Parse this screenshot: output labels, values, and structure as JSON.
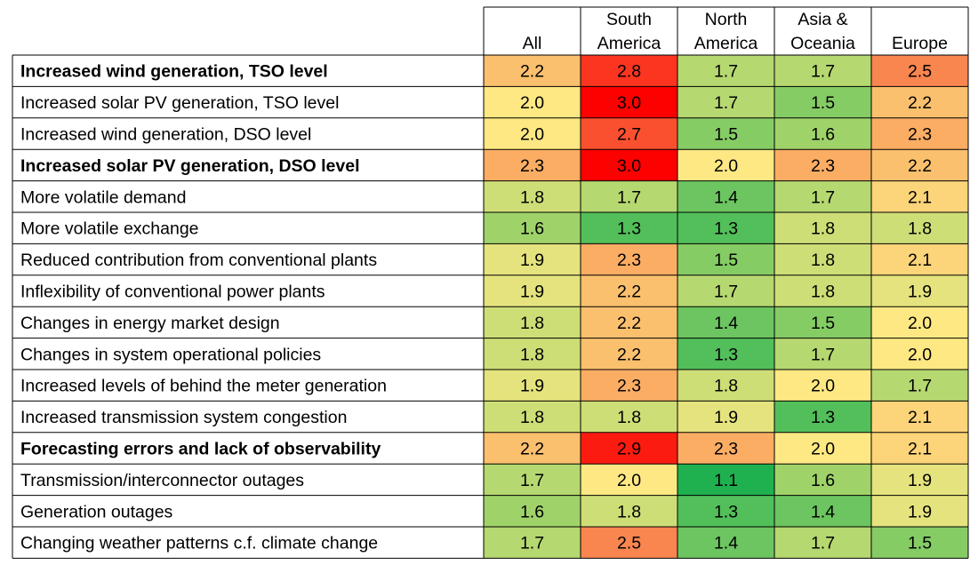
{
  "chart_data": {
    "type": "heatmap",
    "title": "",
    "columns": [
      "All",
      "South\nAmerica",
      "North\nAmerica",
      "Asia &\nOceania",
      "Europe"
    ],
    "rows": [
      {
        "label": "Increased wind generation, TSO level",
        "bold": true,
        "values": [
          2.2,
          2.8,
          1.7,
          1.7,
          2.5
        ]
      },
      {
        "label": "Increased solar PV generation, TSO level",
        "bold": false,
        "values": [
          2.0,
          3.0,
          1.7,
          1.5,
          2.2
        ]
      },
      {
        "label": "Increased wind generation, DSO level",
        "bold": false,
        "values": [
          2.0,
          2.7,
          1.5,
          1.6,
          2.3
        ]
      },
      {
        "label": "Increased solar PV generation, DSO level",
        "bold": true,
        "values": [
          2.3,
          3.0,
          2.0,
          2.3,
          2.2
        ]
      },
      {
        "label": "More volatile demand",
        "bold": false,
        "values": [
          1.8,
          1.7,
          1.4,
          1.7,
          2.1
        ]
      },
      {
        "label": "More volatile exchange",
        "bold": false,
        "values": [
          1.6,
          1.3,
          1.3,
          1.8,
          1.8
        ]
      },
      {
        "label": "Reduced contribution from conventional plants",
        "bold": false,
        "values": [
          1.9,
          2.3,
          1.5,
          1.8,
          2.1
        ]
      },
      {
        "label": "Inflexibility of conventional power plants",
        "bold": false,
        "values": [
          1.9,
          2.2,
          1.7,
          1.8,
          1.9
        ]
      },
      {
        "label": "Changes in energy market design",
        "bold": false,
        "values": [
          1.8,
          2.2,
          1.4,
          1.5,
          2.0
        ]
      },
      {
        "label": "Changes in system operational policies",
        "bold": false,
        "values": [
          1.8,
          2.2,
          1.3,
          1.7,
          2.0
        ]
      },
      {
        "label": "Increased levels of behind the meter generation",
        "bold": false,
        "values": [
          1.9,
          2.3,
          1.8,
          2.0,
          1.7
        ]
      },
      {
        "label": "Increased transmission system congestion",
        "bold": false,
        "values": [
          1.8,
          1.8,
          1.9,
          1.3,
          2.1
        ]
      },
      {
        "label": "Forecasting errors and lack of observability",
        "bold": true,
        "values": [
          2.2,
          2.9,
          2.3,
          2.0,
          2.1
        ]
      },
      {
        "label": "Transmission/interconnector outages",
        "bold": false,
        "values": [
          1.7,
          2.0,
          1.1,
          1.6,
          1.9
        ]
      },
      {
        "label": "Generation outages",
        "bold": false,
        "values": [
          1.6,
          1.8,
          1.3,
          1.4,
          1.9
        ]
      },
      {
        "label": "Changing weather patterns c.f. climate change",
        "bold": false,
        "values": [
          1.7,
          2.5,
          1.4,
          1.7,
          1.5
        ]
      }
    ],
    "color_scale": {
      "min": 1.1,
      "max": 3.0,
      "stops": [
        {
          "value": 1.1,
          "color": "#1fb150"
        },
        {
          "value": 1.6,
          "color": "#9fd36a"
        },
        {
          "value": 2.0,
          "color": "#fde883"
        },
        {
          "value": 2.5,
          "color": "#f9854f"
        },
        {
          "value": 3.0,
          "color": "#fd0000"
        }
      ]
    }
  }
}
